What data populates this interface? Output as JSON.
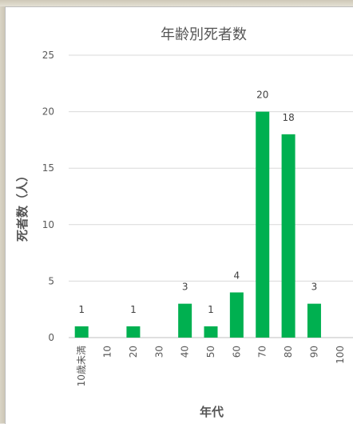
{
  "chart_data": {
    "type": "bar",
    "title": "年齢別死者数",
    "xlabel": "年代",
    "ylabel": "死者数（人）",
    "categories": [
      "10歳未満",
      "10",
      "20",
      "30",
      "40",
      "50",
      "60",
      "70",
      "80",
      "90",
      "100"
    ],
    "values": [
      1,
      0,
      1,
      0,
      3,
      1,
      4,
      20,
      18,
      3,
      0
    ],
    "data_labels": [
      "1",
      "",
      "1",
      "",
      "3",
      "1",
      "4",
      "20",
      "18",
      "3",
      ""
    ],
    "ylim": [
      0,
      25
    ],
    "yticks": [
      0,
      5,
      10,
      15,
      20,
      25
    ],
    "grid": true,
    "bar_color": "#00b050"
  }
}
